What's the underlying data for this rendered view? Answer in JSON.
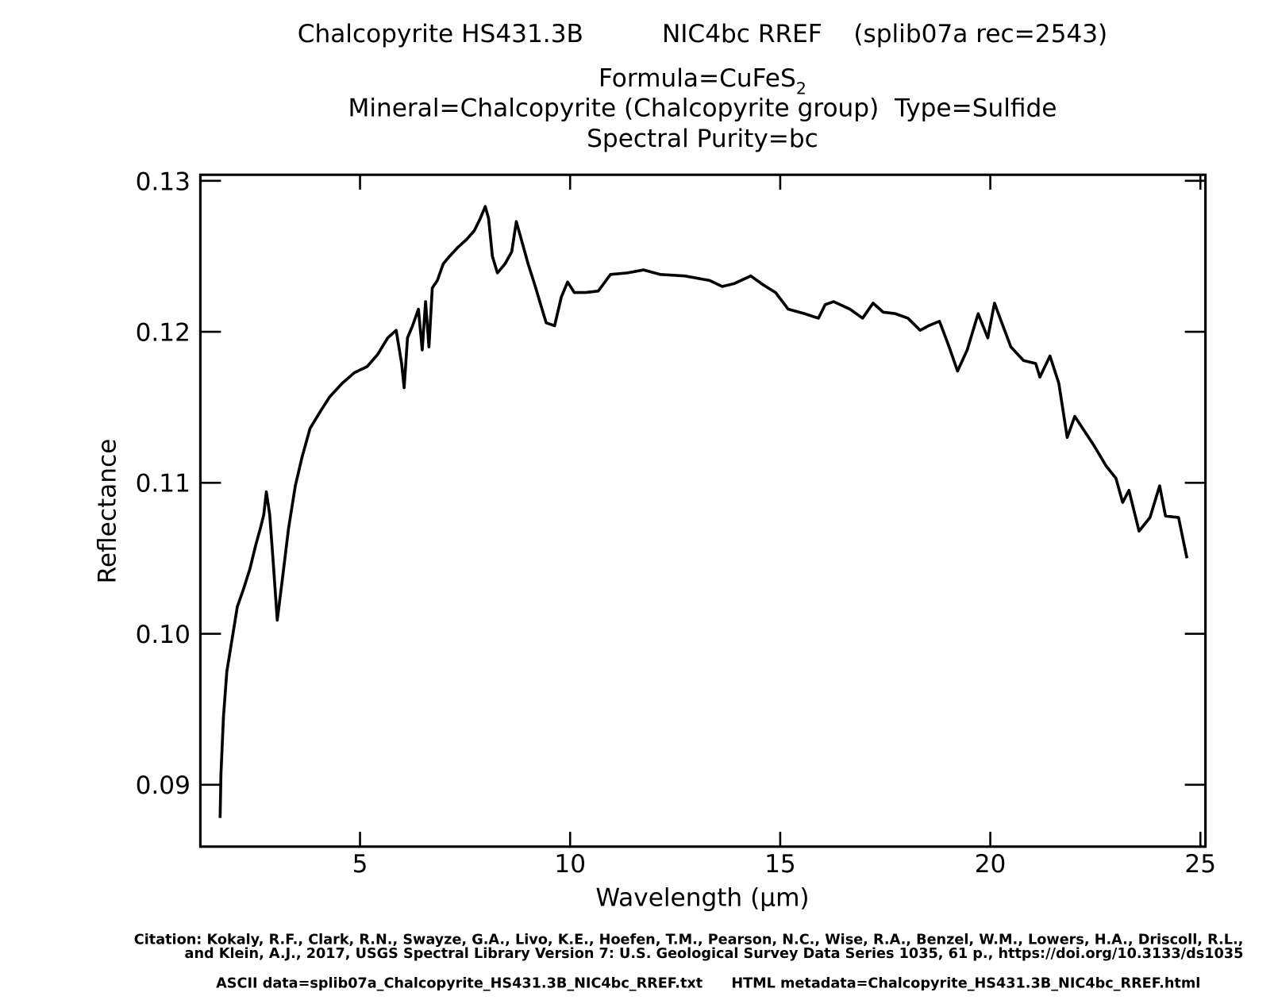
{
  "chart_data": {
    "type": "line",
    "title": "Chalcopyrite HS431.3B          NIC4bc RREF    (splib07a rec=2543)",
    "formula": "Formula=CuFeS",
    "formula_subscript": "2",
    "mineral": "Mineral=Chalcopyrite (Chalcopyrite group)  Type=Sulfide",
    "purity": "Spectral Purity=bc",
    "xlabel": "Wavelength (μm)",
    "ylabel": "Reflectance",
    "citation": [
      "Citation: Kokaly, R.F., Clark, R.N., Swayze, G.A., Livo, K.E., Hoefen, T.M., Pearson, N.C., Wise, R.A., Benzel, W.M., Lowers, H.A., Driscoll, R.L.,",
      "and Klein, A.J., 2017, USGS Spectral Library Version 7: U.S. Geological Survey Data Series 1035, 61 p., https://doi.org/10.3133/ds1035"
    ],
    "ascii_data": "ASCII data=splib07a_Chalcopyrite_HS431.3B_NIC4bc_RREF.txt",
    "html_metadata": "HTML metadata=Chalcopyrite_HS431.3B_NIC4bc_RREF.html",
    "xlim": [
      1.2,
      25.12
    ],
    "ylim": [
      0.0859,
      0.1304
    ],
    "xticks": [
      5,
      10,
      15,
      20,
      25
    ],
    "yticks": [
      0.09,
      {
        "value": 0.1,
        "label": "0.10"
      },
      0.11,
      0.12,
      0.13
    ],
    "color": "#000000",
    "x": [
      1.67,
      1.69,
      1.75,
      1.83,
      1.97,
      2.08,
      2.22,
      2.38,
      2.52,
      2.63,
      2.71,
      2.77,
      2.85,
      2.93,
      3.03,
      3.16,
      3.3,
      3.46,
      3.62,
      3.81,
      4.05,
      4.28,
      4.58,
      4.87,
      5.17,
      5.42,
      5.66,
      5.86,
      5.99,
      6.05,
      6.13,
      6.25,
      6.39,
      6.48,
      6.56,
      6.64,
      6.72,
      6.84,
      6.98,
      7.13,
      7.33,
      7.53,
      7.72,
      7.86,
      7.98,
      8.06,
      8.15,
      8.27,
      8.45,
      8.61,
      8.72,
      8.84,
      9.0,
      9.16,
      9.3,
      9.43,
      9.63,
      9.79,
      9.94,
      10.1,
      10.37,
      10.67,
      10.96,
      11.36,
      11.75,
      12.14,
      12.73,
      13.32,
      13.62,
      13.91,
      14.3,
      14.6,
      14.89,
      15.19,
      15.58,
      15.91,
      16.07,
      16.27,
      16.66,
      16.96,
      17.21,
      17.45,
      17.74,
      18.04,
      18.33,
      18.53,
      18.79,
      19.02,
      19.22,
      19.45,
      19.71,
      19.94,
      20.1,
      20.3,
      20.49,
      20.79,
      21.08,
      21.18,
      21.42,
      21.63,
      21.83,
      22.01,
      22.2,
      22.46,
      22.76,
      22.99,
      23.15,
      23.3,
      23.54,
      23.8,
      24.03,
      24.17,
      24.48,
      24.68
    ],
    "values": [
      0.0878,
      0.0907,
      0.0945,
      0.0975,
      0.0999,
      0.1018,
      0.1029,
      0.1043,
      0.1059,
      0.107,
      0.1079,
      0.1094,
      0.1079,
      0.1049,
      0.1009,
      0.1038,
      0.107,
      0.1098,
      0.1117,
      0.1136,
      0.1147,
      0.1157,
      0.1166,
      0.1173,
      0.1177,
      0.1185,
      0.1196,
      0.1201,
      0.1179,
      0.1163,
      0.1196,
      0.1204,
      0.1215,
      0.1188,
      0.122,
      0.119,
      0.1229,
      0.1234,
      0.1245,
      0.125,
      0.1256,
      0.1261,
      0.1267,
      0.1275,
      0.1283,
      0.1275,
      0.125,
      0.1239,
      0.1245,
      0.1253,
      0.1273,
      0.1261,
      0.1245,
      0.1231,
      0.1218,
      0.1206,
      0.1204,
      0.1223,
      0.1233,
      0.1226,
      0.1226,
      0.1227,
      0.1238,
      0.1239,
      0.1241,
      0.1238,
      0.1237,
      0.1234,
      0.123,
      0.1232,
      0.1237,
      0.1231,
      0.1226,
      0.1215,
      0.1212,
      0.1209,
      0.1218,
      0.122,
      0.1215,
      0.1209,
      0.1219,
      0.1213,
      0.1212,
      0.1209,
      0.1201,
      0.1204,
      0.1207,
      0.119,
      0.1174,
      0.1188,
      0.1212,
      0.1196,
      0.1219,
      0.1204,
      0.119,
      0.1181,
      0.1179,
      0.117,
      0.1184,
      0.1166,
      0.113,
      0.1144,
      0.1136,
      0.1125,
      0.1111,
      0.1103,
      0.1087,
      0.1095,
      0.1068,
      0.1077,
      0.1098,
      0.1078,
      0.1077,
      0.105
    ]
  }
}
